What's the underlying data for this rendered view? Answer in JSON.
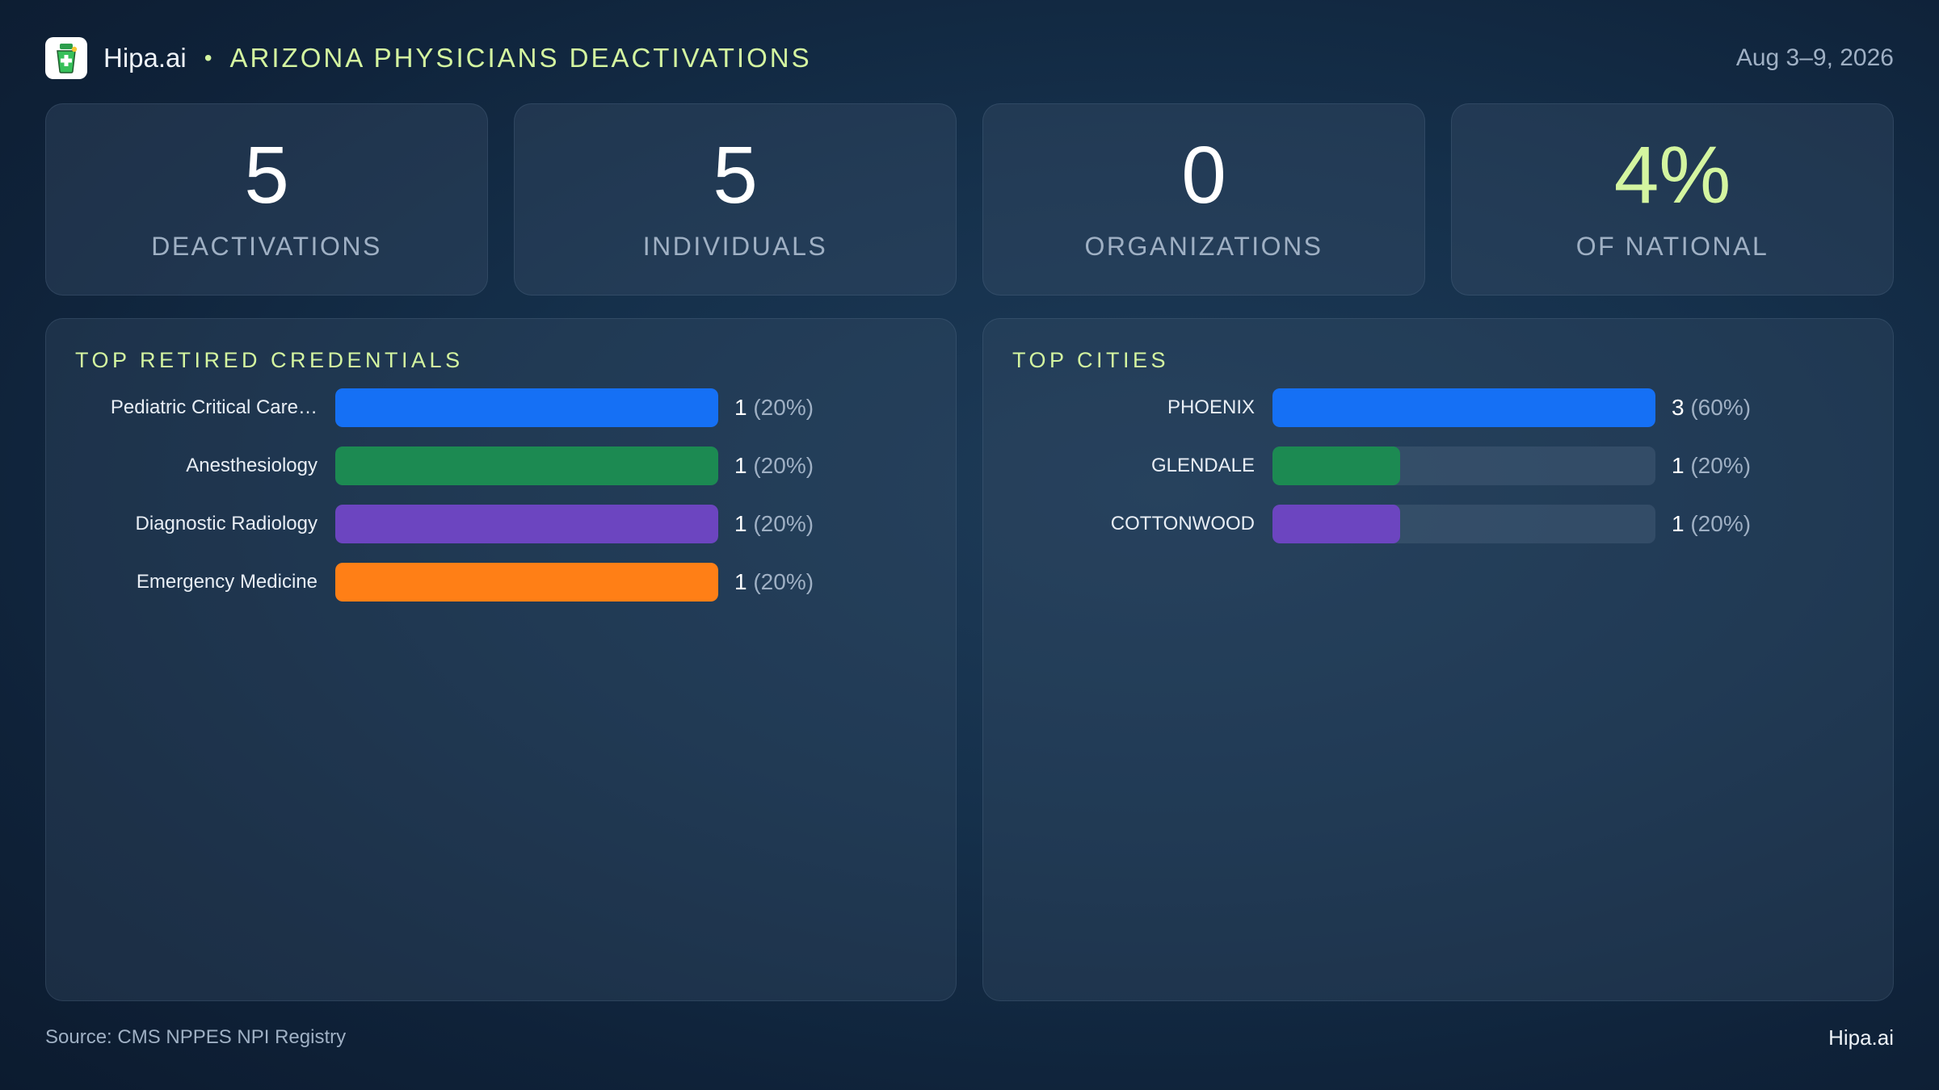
{
  "header": {
    "brand": "Hipa.ai",
    "separator": "•",
    "title": "ARIZONA PHYSICIANS DEACTIVATIONS",
    "date": "Aug 3–9, 2026"
  },
  "stats": [
    {
      "value": "5",
      "label": "DEACTIVATIONS"
    },
    {
      "value": "5",
      "label": "INDIVIDUALS"
    },
    {
      "value": "0",
      "label": "ORGANIZATIONS"
    },
    {
      "value": "4%",
      "label": "OF NATIONAL"
    }
  ],
  "colors": {
    "accent": "#d4f5a0",
    "blue": "#1570f5",
    "green": "#1c8a52",
    "purple": "#6c45c0",
    "orange": "#ff7f16"
  },
  "chart_data": [
    {
      "type": "bar",
      "orientation": "horizontal",
      "title": "TOP RETIRED CREDENTIALS",
      "categories": [
        "Pediatric Critical Care…",
        "Anesthesiology",
        "Diagnostic Radiology",
        "Emergency Medicine"
      ],
      "values": [
        1,
        1,
        1,
        1
      ],
      "value_labels": [
        "1",
        "1",
        "1",
        "1"
      ],
      "percent_labels": [
        "(20%)",
        "(20%)",
        "(20%)",
        "(20%)"
      ],
      "bar_colors": [
        "#1570f5",
        "#1c8a52",
        "#6c45c0",
        "#ff7f16"
      ],
      "xlim": [
        0,
        1
      ]
    },
    {
      "type": "bar",
      "orientation": "horizontal",
      "title": "TOP CITIES",
      "categories": [
        "PHOENIX",
        "GLENDALE",
        "COTTONWOOD"
      ],
      "values": [
        3,
        1,
        1
      ],
      "value_labels": [
        "3",
        "1",
        "1"
      ],
      "percent_labels": [
        "(60%)",
        "(20%)",
        "(20%)"
      ],
      "bar_colors": [
        "#1570f5",
        "#1c8a52",
        "#6c45c0"
      ],
      "xlim": [
        0,
        3
      ]
    }
  ],
  "footer": {
    "source": "Source: CMS NPPES NPI Registry",
    "brand": "Hipa.ai"
  }
}
